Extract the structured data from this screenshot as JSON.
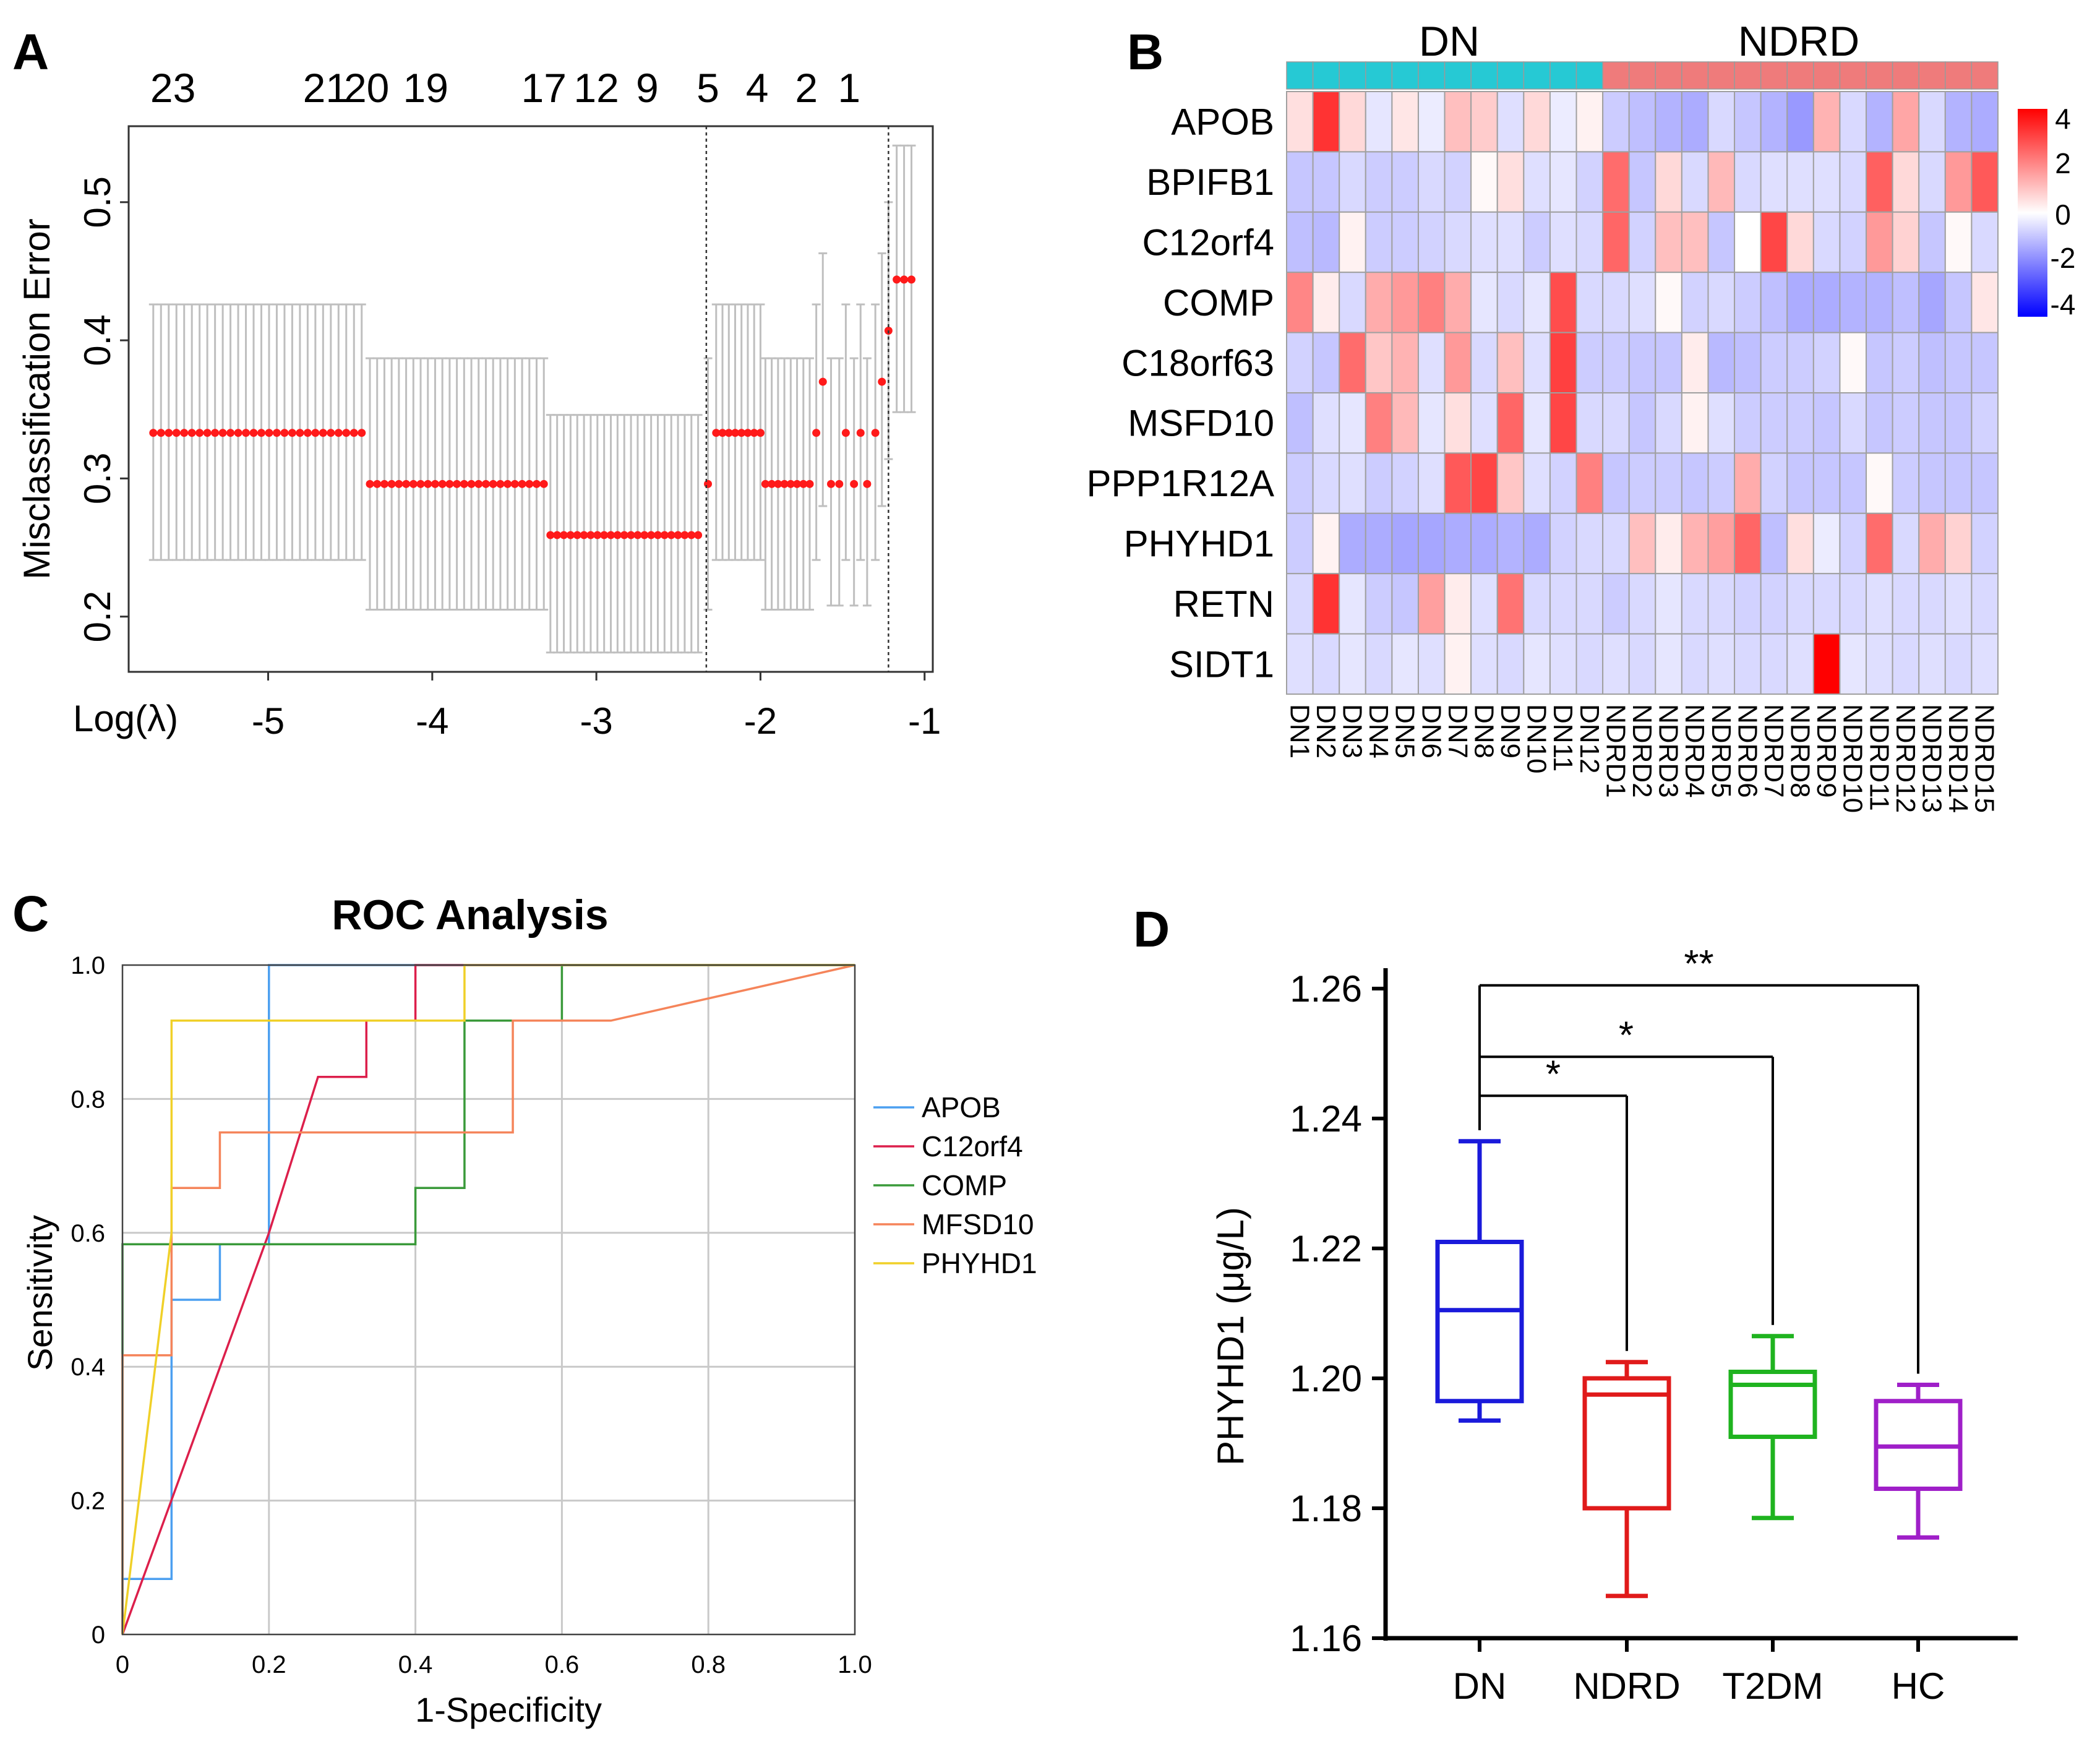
{
  "panels": {
    "A": {
      "letter": "A",
      "xlabel": "Log(λ)",
      "ylabel": "Misclassification Error",
      "top_ticks": [
        "23",
        "21",
        "20",
        "19",
        "17",
        "12",
        "9",
        "5",
        "4",
        "2",
        "1"
      ],
      "top_tick_positions": [
        -5.58,
        -4.65,
        -4.4,
        -4.04,
        -3.32,
        -3.0,
        -2.69,
        -2.32,
        -2.02,
        -1.72,
        -1.46
      ],
      "x_ticks": [
        -5,
        -4,
        -3,
        -2,
        -1
      ],
      "y_ticks": [
        0.2,
        0.3,
        0.4,
        0.5
      ],
      "x_range": [
        -5.85,
        -0.95
      ],
      "y_range": [
        0.16,
        0.555
      ],
      "vlines": [
        -2.33,
        -1.22
      ],
      "err_color": "#bfbfbf",
      "point_color": "#ff1a1a"
    },
    "B": {
      "letter": "B",
      "group_labels": [
        "DN",
        "NDRD"
      ],
      "group_colors": [
        "#26c9d4",
        "#ef7b7b"
      ],
      "legend_ticks": [
        "4",
        "2",
        "0",
        "-2",
        "-4"
      ],
      "color_low": "#0000ff",
      "color_mid": "#ffffff",
      "color_high": "#ff0000"
    },
    "C": {
      "letter": "C",
      "title": "ROC Analysis",
      "xlabel": "1-Specificity",
      "ylabel": "Sensitivity",
      "x_ticks": [
        "0",
        "0.2",
        "0.4",
        "0.6",
        "0.8",
        "1.0"
      ],
      "y_ticks": [
        "0",
        "0.2",
        "0.4",
        "0.6",
        "0.8",
        "1.0"
      ]
    },
    "D": {
      "letter": "D",
      "ylabel": "PHYHD1 (μg/L)",
      "y_ticks": [
        "1.16",
        "1.18",
        "1.20",
        "1.22",
        "1.24",
        "1.26"
      ],
      "sig_labels": [
        "**",
        "*",
        "*"
      ]
    }
  },
  "chart_data": [
    {
      "type": "scatter",
      "panel": "A",
      "title": "",
      "xlabel": "Log(λ)",
      "ylabel": "Misclassification Error",
      "xlim": [
        -5.85,
        -0.95
      ],
      "ylim": [
        0.16,
        0.555
      ],
      "series": [
        {
          "name": "cv_error",
          "segments": [
            {
              "x_start": -5.7,
              "x_end": -4.43,
              "n": 28,
              "y": 0.333,
              "lo": 0.241,
              "hi": 0.426
            },
            {
              "x_start": -4.38,
              "x_end": -3.32,
              "n": 25,
              "y": 0.296,
              "lo": 0.205,
              "hi": 0.387
            },
            {
              "x_start": -3.28,
              "x_end": -2.38,
              "n": 23,
              "y": 0.259,
              "lo": 0.174,
              "hi": 0.346
            },
            {
              "x_start": -2.32,
              "x_end": -2.32,
              "n": 1,
              "y": 0.296,
              "lo": 0.205,
              "hi": 0.387
            },
            {
              "x_start": -2.27,
              "x_end": -2.0,
              "n": 8,
              "y": 0.333,
              "lo": 0.241,
              "hi": 0.426
            },
            {
              "x_start": -1.97,
              "x_end": -1.7,
              "n": 8,
              "y": 0.296,
              "lo": 0.205,
              "hi": 0.387
            },
            {
              "x_start": -1.66,
              "x_end": -1.66,
              "n": 1,
              "y": 0.333,
              "lo": 0.241,
              "hi": 0.426
            },
            {
              "x_start": -1.62,
              "x_end": -1.62,
              "n": 1,
              "y": 0.37,
              "lo": 0.28,
              "hi": 0.463
            },
            {
              "x_start": -1.57,
              "x_end": -1.52,
              "n": 2,
              "y": 0.296,
              "lo": 0.208,
              "hi": 0.387
            },
            {
              "x_start": -1.48,
              "x_end": -1.48,
              "n": 1,
              "y": 0.333,
              "lo": 0.241,
              "hi": 0.426
            },
            {
              "x_start": -1.43,
              "x_end": -1.43,
              "n": 1,
              "y": 0.296,
              "lo": 0.208,
              "hi": 0.387
            },
            {
              "x_start": -1.39,
              "x_end": -1.39,
              "n": 1,
              "y": 0.333,
              "lo": 0.241,
              "hi": 0.426
            },
            {
              "x_start": -1.35,
              "x_end": -1.35,
              "n": 1,
              "y": 0.296,
              "lo": 0.208,
              "hi": 0.387
            },
            {
              "x_start": -1.3,
              "x_end": -1.3,
              "n": 1,
              "y": 0.333,
              "lo": 0.241,
              "hi": 0.426
            },
            {
              "x_start": -1.26,
              "x_end": -1.26,
              "n": 1,
              "y": 0.37,
              "lo": 0.28,
              "hi": 0.463
            },
            {
              "x_start": -1.22,
              "x_end": -1.22,
              "n": 1,
              "y": 0.407,
              "lo": 0.314,
              "hi": 0.5
            },
            {
              "x_start": -1.17,
              "x_end": -1.08,
              "n": 3,
              "y": 0.444,
              "lo": 0.348,
              "hi": 0.541
            }
          ]
        }
      ]
    },
    {
      "type": "heatmap",
      "panel": "B",
      "rows": [
        "APOB",
        "BPIFB1",
        "C12orf4",
        "COMP",
        "C18orf63",
        "MSFD10",
        "PPP1R12A",
        "PHYHD1",
        "RETN",
        "SIDT1"
      ],
      "columns": [
        "DN1",
        "DN2",
        "DN3",
        "DN4",
        "DN5",
        "DN6",
        "DN7",
        "DN8",
        "DN9",
        "DN10",
        "DN11",
        "DN12",
        "NDRD1",
        "NDRD2",
        "NDRD3",
        "NDRD4",
        "NDRD5",
        "NDRD6",
        "NDRD7",
        "NDRD8",
        "NDRD9",
        "NDRD10",
        "NDRD11",
        "NDRD12",
        "NDRD13",
        "NDRD14",
        "NDRD15"
      ],
      "groups": [
        {
          "name": "DN",
          "count": 12
        },
        {
          "name": "NDRD",
          "count": 15
        }
      ],
      "scale_range": [
        -4,
        4
      ],
      "values": [
        [
          0.5,
          3.2,
          0.6,
          -0.4,
          0.4,
          -0.3,
          1.0,
          0.8,
          -0.5,
          0.6,
          -0.3,
          0.2,
          -0.8,
          -1.0,
          -1.2,
          -1.3,
          -0.6,
          -0.9,
          -1.2,
          -1.6,
          1.2,
          -0.6,
          -1.2,
          1.4,
          -0.6,
          -1.2,
          -1.3
        ],
        [
          -0.9,
          -0.9,
          -0.6,
          -0.8,
          -0.8,
          -0.6,
          -0.7,
          0.1,
          0.5,
          -0.5,
          -0.4,
          -0.7,
          2.3,
          -0.9,
          0.6,
          -0.6,
          1.1,
          -0.6,
          -0.5,
          -0.5,
          -0.5,
          -0.6,
          2.5,
          0.6,
          -0.6,
          1.6,
          2.6
        ],
        [
          -1.0,
          -1.1,
          0.2,
          -0.8,
          -0.8,
          -0.7,
          -0.6,
          -0.5,
          -0.5,
          -0.8,
          -0.5,
          -0.6,
          2.4,
          -0.7,
          1.0,
          1.0,
          -0.9,
          0.0,
          2.9,
          0.6,
          -0.6,
          -0.7,
          1.6,
          0.7,
          -0.9,
          0.1,
          -0.6
        ],
        [
          1.9,
          0.3,
          -0.6,
          1.3,
          1.6,
          2.0,
          1.3,
          -0.4,
          -0.6,
          -0.4,
          2.8,
          -0.6,
          -0.6,
          -0.5,
          0.1,
          -0.7,
          -0.6,
          -0.8,
          -1.0,
          -1.3,
          -1.3,
          -1.2,
          -1.2,
          -1.0,
          -1.4,
          -0.9,
          0.4
        ],
        [
          -0.7,
          -0.9,
          2.3,
          0.9,
          1.2,
          -0.5,
          1.6,
          -0.6,
          1.0,
          -0.5,
          3.0,
          -0.8,
          -0.8,
          -0.9,
          -0.9,
          0.3,
          -1.1,
          -1.0,
          -0.8,
          -0.8,
          -0.7,
          0.1,
          -0.9,
          -0.8,
          -1.0,
          -0.9,
          -0.9
        ],
        [
          -1.0,
          -0.5,
          -0.4,
          2.0,
          1.1,
          -0.4,
          0.5,
          -0.5,
          2.4,
          -0.4,
          2.9,
          -0.6,
          -0.6,
          -0.9,
          -0.6,
          0.2,
          -0.5,
          -0.8,
          -0.8,
          -0.8,
          -0.9,
          -0.6,
          -0.9,
          -0.8,
          -0.9,
          -0.9,
          -0.7
        ],
        [
          -0.8,
          -0.6,
          -0.5,
          -0.8,
          -0.7,
          -0.5,
          2.6,
          2.9,
          0.9,
          -0.5,
          -0.7,
          2.0,
          -0.9,
          -0.8,
          -0.8,
          -0.9,
          -0.8,
          1.3,
          -0.7,
          -0.9,
          -0.9,
          -0.9,
          0.1,
          -0.8,
          -0.9,
          -0.9,
          -0.9
        ],
        [
          -0.8,
          0.2,
          -1.3,
          -1.3,
          -1.4,
          -1.4,
          -1.3,
          -1.3,
          -1.2,
          -1.3,
          -0.7,
          -0.6,
          -0.6,
          1.0,
          0.3,
          1.2,
          1.5,
          2.4,
          -1.0,
          0.5,
          -0.3,
          -0.7,
          2.3,
          -0.6,
          1.3,
          0.7,
          -0.7
        ],
        [
          -0.6,
          3.2,
          -0.4,
          -0.8,
          -0.9,
          1.5,
          0.3,
          -0.5,
          2.2,
          -0.6,
          -0.6,
          -0.6,
          -0.8,
          -0.6,
          -0.4,
          -0.6,
          -0.6,
          -0.7,
          -0.7,
          -0.6,
          -0.6,
          -0.6,
          -0.5,
          -0.6,
          -0.6,
          -0.5,
          -0.6
        ],
        [
          -0.5,
          -0.6,
          -0.4,
          -0.6,
          -0.4,
          -0.5,
          0.2,
          -0.5,
          -0.6,
          -0.4,
          -0.5,
          -0.6,
          -0.5,
          -0.6,
          -0.4,
          -0.6,
          -0.5,
          -0.6,
          -0.6,
          -0.5,
          4.0,
          -0.4,
          -0.5,
          -0.6,
          -0.5,
          -0.6,
          -0.5
        ]
      ]
    },
    {
      "type": "line",
      "panel": "C",
      "title": "ROC Analysis",
      "xlabel": "1-Specificity",
      "ylabel": "Sensitivity",
      "xlim": [
        0,
        1
      ],
      "ylim": [
        0,
        1
      ],
      "series": [
        {
          "name": "APOB",
          "color": "#4b9ff0",
          "points": [
            [
              0,
              0
            ],
            [
              0,
              0.083
            ],
            [
              0.067,
              0.083
            ],
            [
              0.067,
              0.5
            ],
            [
              0.133,
              0.5
            ],
            [
              0.133,
              0.583
            ],
            [
              0.2,
              0.583
            ],
            [
              0.2,
              1.0
            ],
            [
              1.0,
              1.0
            ]
          ]
        },
        {
          "name": "C12orf4",
          "color": "#dc1f4b",
          "points": [
            [
              0,
              0
            ],
            [
              0.05,
              0.15
            ],
            [
              0.1,
              0.3
            ],
            [
              0.15,
              0.45
            ],
            [
              0.2,
              0.6
            ],
            [
              0.267,
              0.833
            ],
            [
              0.333,
              0.833
            ],
            [
              0.333,
              0.917
            ],
            [
              0.4,
              0.917
            ],
            [
              0.4,
              1.0
            ],
            [
              1.0,
              1.0
            ]
          ]
        },
        {
          "name": "COMP",
          "color": "#3a9a3a",
          "points": [
            [
              0,
              0
            ],
            [
              0,
              0.583
            ],
            [
              0.4,
              0.583
            ],
            [
              0.4,
              0.667
            ],
            [
              0.467,
              0.667
            ],
            [
              0.467,
              0.917
            ],
            [
              0.6,
              0.917
            ],
            [
              0.6,
              1.0
            ],
            [
              1.0,
              1.0
            ]
          ]
        },
        {
          "name": "MFSD10",
          "color": "#f5845a",
          "points": [
            [
              0,
              0
            ],
            [
              0,
              0.417
            ],
            [
              0.067,
              0.417
            ],
            [
              0.067,
              0.667
            ],
            [
              0.133,
              0.667
            ],
            [
              0.133,
              0.75
            ],
            [
              0.533,
              0.75
            ],
            [
              0.533,
              0.917
            ],
            [
              0.667,
              0.917
            ],
            [
              1.0,
              1.0
            ]
          ]
        },
        {
          "name": "PHYHD1",
          "color": "#f0d028",
          "points": [
            [
              0,
              0
            ],
            [
              0.067,
              0.6
            ],
            [
              0.067,
              0.917
            ],
            [
              0.467,
              0.917
            ],
            [
              0.467,
              1.0
            ],
            [
              1.0,
              1.0
            ]
          ]
        }
      ]
    },
    {
      "type": "box",
      "panel": "D",
      "ylabel": "PHYHD1 (μg/L)",
      "ylim": [
        1.16,
        1.265
      ],
      "categories": [
        "DN",
        "NDRD",
        "T2DM",
        "HC"
      ],
      "series": [
        {
          "name": "DN",
          "color": "#1a1adb",
          "min": 1.1935,
          "q1": 1.1965,
          "median": 1.2105,
          "q3": 1.221,
          "max": 1.2365
        },
        {
          "name": "NDRD",
          "color": "#e01a1a",
          "min": 1.1665,
          "q1": 1.18,
          "median": 1.1975,
          "q3": 1.2,
          "max": 1.2025
        },
        {
          "name": "T2DM",
          "color": "#1fb31f",
          "min": 1.1785,
          "q1": 1.191,
          "median": 1.199,
          "q3": 1.201,
          "max": 1.2065
        },
        {
          "name": "HC",
          "color": "#9f1fc8",
          "min": 1.1755,
          "q1": 1.183,
          "median": 1.1895,
          "q3": 1.1965,
          "max": 1.199
        }
      ],
      "comparisons": [
        {
          "from": "DN",
          "to": "HC",
          "label": "**",
          "y": 1.2605
        },
        {
          "from": "DN",
          "to": "T2DM",
          "label": "*",
          "y": 1.2495
        },
        {
          "from": "DN",
          "to": "NDRD",
          "label": "*",
          "y": 1.2435
        }
      ]
    }
  ]
}
